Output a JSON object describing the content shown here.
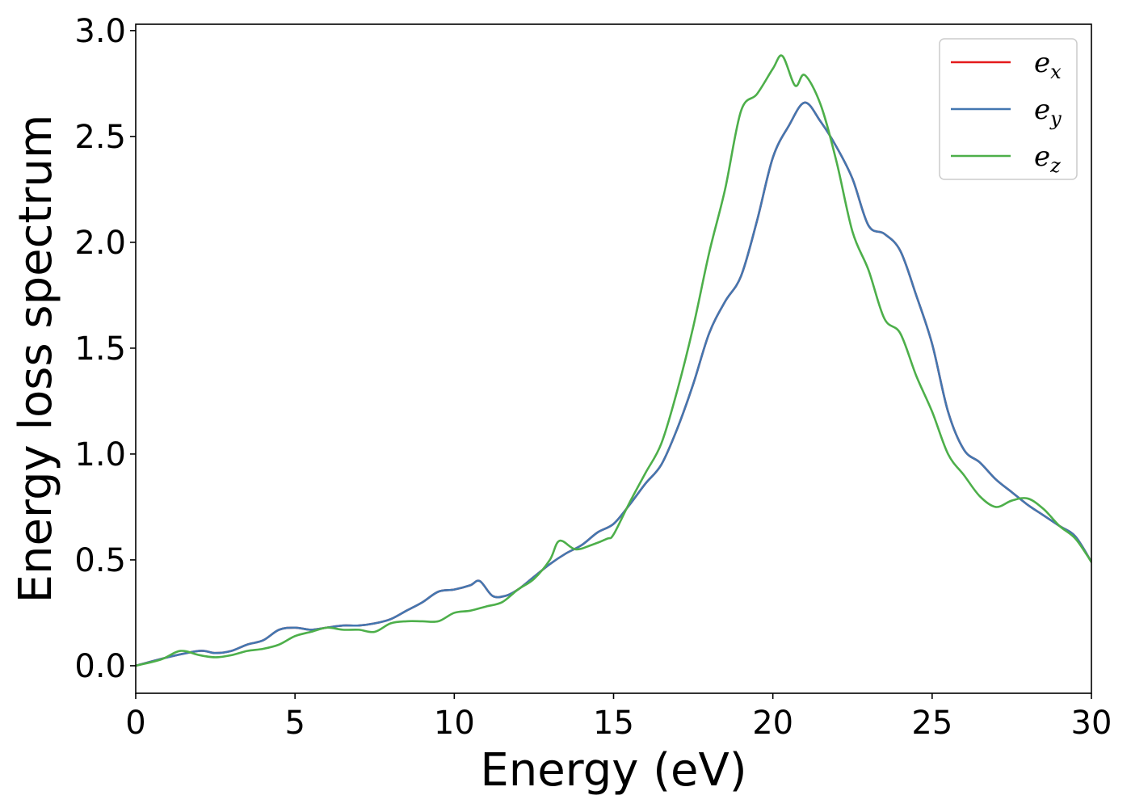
{
  "chart_data": {
    "type": "line",
    "title": "",
    "xlabel": "Energy (eV)",
    "ylabel": "Energy loss spectrum",
    "xlim": [
      0,
      30
    ],
    "ylim": [
      -0.13,
      3.03
    ],
    "xticks": [
      0,
      5,
      10,
      15,
      20,
      25,
      30
    ],
    "yticks": [
      0.0,
      0.5,
      1.0,
      1.5,
      2.0,
      2.5,
      3.0
    ],
    "xtick_labels": [
      "0",
      "5",
      "10",
      "15",
      "20",
      "25",
      "30"
    ],
    "ytick_labels": [
      "0.0",
      "0.5",
      "1.0",
      "1.5",
      "2.0",
      "2.5",
      "3.0"
    ],
    "grid": false,
    "legend_position": "top-right",
    "series": [
      {
        "name": "e_x",
        "label_base": "e",
        "label_sub": "x",
        "color": "#e41a1c",
        "x": [
          0,
          1,
          2,
          2.5,
          3,
          3.5,
          4,
          4.5,
          5,
          5.5,
          6,
          6.5,
          7,
          7.5,
          8,
          8.5,
          9,
          9.5,
          10,
          10.5,
          10.8,
          11.2,
          11.6,
          12,
          12.5,
          13,
          13.5,
          14,
          14.5,
          15,
          15.5,
          16,
          16.5,
          17,
          17.5,
          18,
          18.5,
          19,
          19.5,
          20,
          20.5,
          21,
          21.5,
          22,
          22.5,
          23,
          23.5,
          24,
          24.5,
          25,
          25.5,
          26,
          26.5,
          27,
          27.5,
          28,
          28.5,
          29,
          29.5,
          30
        ],
        "values": [
          0.0,
          0.04,
          0.07,
          0.06,
          0.07,
          0.1,
          0.12,
          0.17,
          0.18,
          0.17,
          0.18,
          0.19,
          0.19,
          0.2,
          0.22,
          0.26,
          0.3,
          0.35,
          0.36,
          0.38,
          0.4,
          0.33,
          0.33,
          0.36,
          0.42,
          0.48,
          0.53,
          0.57,
          0.63,
          0.67,
          0.76,
          0.86,
          0.95,
          1.12,
          1.33,
          1.57,
          1.72,
          1.84,
          2.1,
          2.4,
          2.55,
          2.66,
          2.57,
          2.45,
          2.3,
          2.08,
          2.04,
          1.96,
          1.75,
          1.52,
          1.2,
          1.02,
          0.96,
          0.88,
          0.82,
          0.76,
          0.71,
          0.66,
          0.61,
          0.49
        ]
      },
      {
        "name": "e_y",
        "label_base": "e",
        "label_sub": "y",
        "color": "#4377b0",
        "x": [
          0,
          1,
          2,
          2.5,
          3,
          3.5,
          4,
          4.5,
          5,
          5.5,
          6,
          6.5,
          7,
          7.5,
          8,
          8.5,
          9,
          9.5,
          10,
          10.5,
          10.8,
          11.2,
          11.6,
          12,
          12.5,
          13,
          13.5,
          14,
          14.5,
          15,
          15.5,
          16,
          16.5,
          17,
          17.5,
          18,
          18.5,
          19,
          19.5,
          20,
          20.5,
          21,
          21.5,
          22,
          22.5,
          23,
          23.5,
          24,
          24.5,
          25,
          25.5,
          26,
          26.5,
          27,
          27.5,
          28,
          28.5,
          29,
          29.5,
          30
        ],
        "values": [
          0.0,
          0.04,
          0.07,
          0.06,
          0.07,
          0.1,
          0.12,
          0.17,
          0.18,
          0.17,
          0.18,
          0.19,
          0.19,
          0.2,
          0.22,
          0.26,
          0.3,
          0.35,
          0.36,
          0.38,
          0.4,
          0.33,
          0.33,
          0.36,
          0.42,
          0.48,
          0.53,
          0.57,
          0.63,
          0.67,
          0.76,
          0.86,
          0.95,
          1.12,
          1.33,
          1.57,
          1.72,
          1.84,
          2.1,
          2.4,
          2.55,
          2.66,
          2.57,
          2.45,
          2.3,
          2.08,
          2.04,
          1.96,
          1.75,
          1.52,
          1.2,
          1.02,
          0.96,
          0.88,
          0.82,
          0.76,
          0.71,
          0.66,
          0.61,
          0.49
        ]
      },
      {
        "name": "e_z",
        "label_base": "e",
        "label_sub": "z",
        "color": "#4daf4a",
        "x": [
          0,
          0.8,
          1.4,
          2,
          2.5,
          3,
          3.5,
          4,
          4.5,
          5,
          5.5,
          6,
          6.5,
          7,
          7.5,
          8,
          8.5,
          9,
          9.5,
          10,
          10.5,
          11,
          11.5,
          12,
          12.5,
          13,
          13.3,
          13.8,
          14.3,
          14.8,
          15,
          15.5,
          16,
          16.5,
          17,
          17.5,
          18,
          18.5,
          19,
          19.5,
          20,
          20.3,
          20.7,
          21,
          21.5,
          22,
          22.5,
          23,
          23.5,
          24,
          24.5,
          25,
          25.5,
          26,
          26.5,
          27,
          27.5,
          28,
          28.5,
          29,
          29.5,
          30
        ],
        "values": [
          0.0,
          0.03,
          0.07,
          0.05,
          0.04,
          0.05,
          0.07,
          0.08,
          0.1,
          0.14,
          0.16,
          0.18,
          0.17,
          0.17,
          0.16,
          0.2,
          0.21,
          0.21,
          0.21,
          0.25,
          0.26,
          0.28,
          0.3,
          0.36,
          0.41,
          0.5,
          0.59,
          0.55,
          0.57,
          0.6,
          0.62,
          0.77,
          0.91,
          1.05,
          1.3,
          1.6,
          1.95,
          2.25,
          2.62,
          2.7,
          2.82,
          2.88,
          2.74,
          2.79,
          2.65,
          2.38,
          2.05,
          1.87,
          1.64,
          1.57,
          1.37,
          1.2,
          1.0,
          0.9,
          0.8,
          0.75,
          0.78,
          0.79,
          0.74,
          0.66,
          0.6,
          0.49
        ]
      }
    ]
  }
}
